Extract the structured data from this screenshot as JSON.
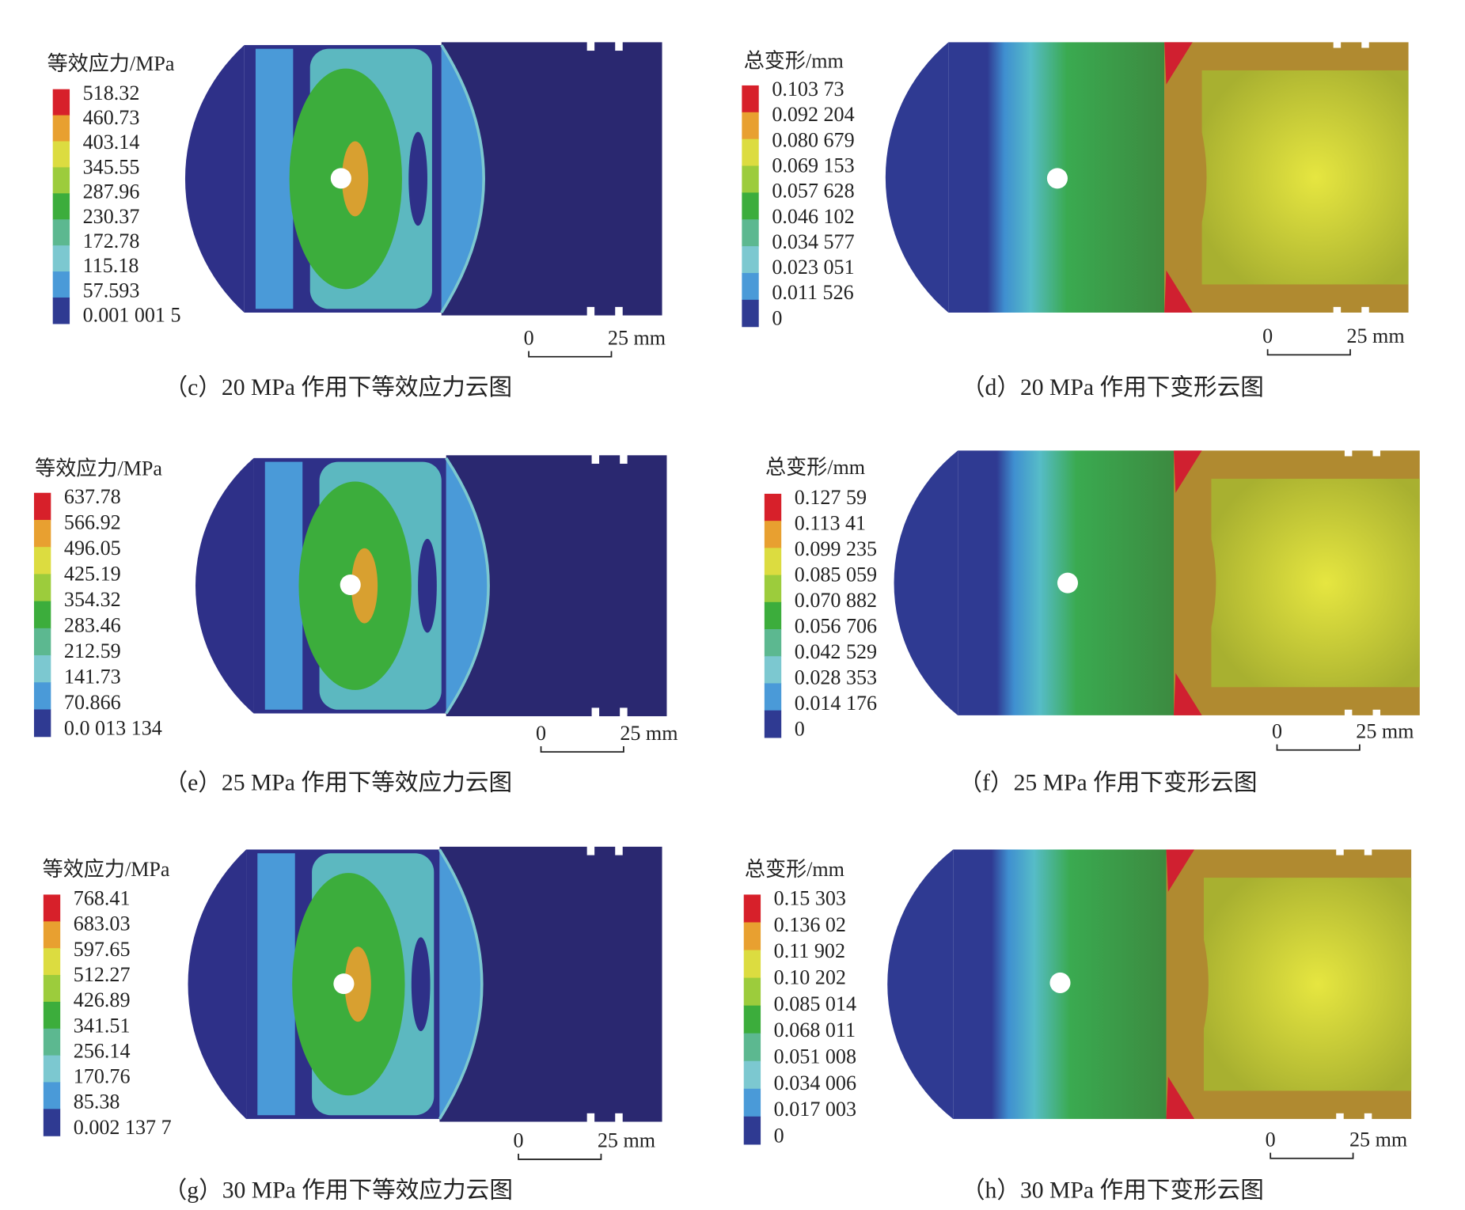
{
  "panels": [
    {
      "kind": "stress",
      "legend_title": "等效应力/MPa",
      "legend_labels": [
        "518.32",
        "460.73",
        "403.14",
        "345.55",
        "287.96",
        "230.37",
        "172.78",
        "115.18",
        "57.593",
        "0.001 001 5"
      ],
      "scale_start": "0",
      "scale_end": "25 mm",
      "caption": "（c）20 MPa 作用下等效应力云图"
    },
    {
      "kind": "deform",
      "legend_title": "总变形/mm",
      "legend_labels": [
        "0.103 73",
        "0.092 204",
        "0.080 679",
        "0.069 153",
        "0.057 628",
        "0.046 102",
        "0.034 577",
        "0.023 051",
        "0.011 526",
        "0"
      ],
      "scale_start": "0",
      "scale_end": "25 mm",
      "caption": "（d）20 MPa 作用下变形云图"
    },
    {
      "kind": "stress",
      "legend_title": "等效应力/MPa",
      "legend_labels": [
        "637.78",
        "566.92",
        "496.05",
        "425.19",
        "354.32",
        "283.46",
        "212.59",
        "141.73",
        "70.866",
        "0.0 013 134"
      ],
      "scale_start": "0",
      "scale_end": "25 mm",
      "caption": "（e）25 MPa 作用下等效应力云图"
    },
    {
      "kind": "deform",
      "legend_title": "总变形/mm",
      "legend_labels": [
        "0.127 59",
        "0.113 41",
        "0.099 235",
        "0.085 059",
        "0.070 882",
        "0.056 706",
        "0.042 529",
        "0.028 353",
        "0.014 176",
        "0"
      ],
      "scale_start": "0",
      "scale_end": "25 mm",
      "caption": "（f）25 MPa 作用下变形云图"
    },
    {
      "kind": "stress",
      "legend_title": "等效应力/MPa",
      "legend_labels": [
        "768.41",
        "683.03",
        "597.65",
        "512.27",
        "426.89",
        "341.51",
        "256.14",
        "170.76",
        "85.38",
        "0.002 137 7"
      ],
      "scale_start": "0",
      "scale_end": "25 mm",
      "caption": "（g）30 MPa 作用下等效应力云图"
    },
    {
      "kind": "deform",
      "legend_title": "总变形/mm",
      "legend_labels": [
        "0.15 303",
        "0.136 02",
        "0.11 902",
        "0.10 202",
        "0.085 014",
        "0.068 011",
        "0.051 008",
        "0.034 006",
        "0.017 003",
        "0"
      ],
      "scale_start": "0",
      "scale_end": "25 mm",
      "caption": "（h）30 MPa 作用下变形云图"
    }
  ]
}
